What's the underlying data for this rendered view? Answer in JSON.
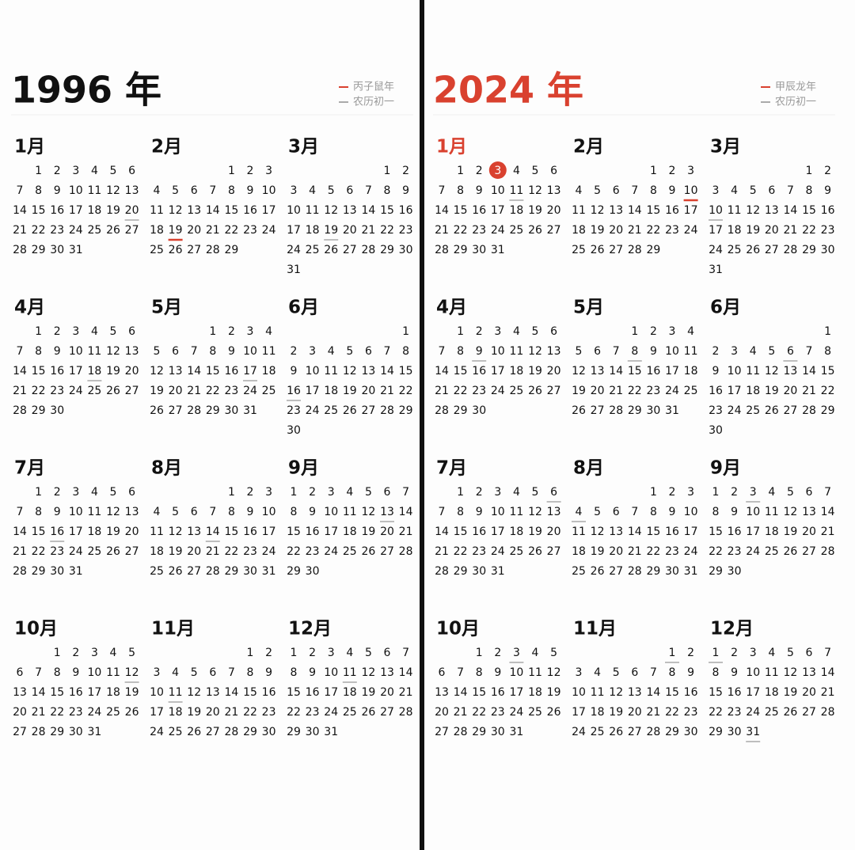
{
  "calendars": [
    {
      "title": "1996 年",
      "title_color": "#111111",
      "legend": [
        {
          "label": "丙子鼠年",
          "color": "#d9412f"
        },
        {
          "label": "农历初一",
          "color": "#aaaaaa"
        }
      ],
      "months": [
        {
          "name": "1月",
          "days": [
            null,
            1,
            2,
            3,
            4,
            5,
            6,
            7,
            8,
            9,
            10,
            11,
            12,
            13,
            14,
            15,
            16,
            17,
            18,
            19,
            20,
            21,
            22,
            23,
            24,
            25,
            26,
            27,
            28,
            29,
            30,
            31
          ],
          "lunar_first_days": [
            20
          ]
        },
        {
          "name": "2月",
          "days": [
            null,
            null,
            null,
            null,
            1,
            2,
            3,
            4,
            5,
            6,
            7,
            8,
            9,
            10,
            11,
            12,
            13,
            14,
            15,
            16,
            17,
            18,
            19,
            20,
            21,
            22,
            23,
            24,
            25,
            26,
            27,
            28,
            29
          ],
          "new_year_day": 19
        },
        {
          "name": "3月",
          "days": [
            null,
            null,
            null,
            null,
            null,
            1,
            2,
            3,
            4,
            5,
            6,
            7,
            8,
            9,
            10,
            11,
            12,
            13,
            14,
            15,
            16,
            17,
            18,
            19,
            20,
            21,
            22,
            23,
            24,
            25,
            26,
            27,
            28,
            29,
            30,
            31
          ],
          "lunar_first_days": [
            19
          ]
        },
        {
          "name": "4月",
          "days": [
            null,
            1,
            2,
            3,
            4,
            5,
            6,
            7,
            8,
            9,
            10,
            11,
            12,
            13,
            14,
            15,
            16,
            17,
            18,
            19,
            20,
            21,
            22,
            23,
            24,
            25,
            26,
            27,
            28,
            29,
            30
          ],
          "lunar_first_days": [
            18
          ]
        },
        {
          "name": "5月",
          "days": [
            null,
            null,
            null,
            1,
            2,
            3,
            4,
            5,
            6,
            7,
            8,
            9,
            10,
            11,
            12,
            13,
            14,
            15,
            16,
            17,
            18,
            19,
            20,
            21,
            22,
            23,
            24,
            25,
            26,
            27,
            28,
            29,
            30,
            31
          ],
          "lunar_first_days": [
            17
          ]
        },
        {
          "name": "6月",
          "days": [
            null,
            null,
            null,
            null,
            null,
            null,
            1,
            2,
            3,
            4,
            5,
            6,
            7,
            8,
            9,
            10,
            11,
            12,
            13,
            14,
            15,
            16,
            17,
            18,
            19,
            20,
            21,
            22,
            23,
            24,
            25,
            26,
            27,
            28,
            29,
            30
          ],
          "lunar_first_days": [
            16
          ]
        },
        {
          "name": "7月",
          "days": [
            null,
            1,
            2,
            3,
            4,
            5,
            6,
            7,
            8,
            9,
            10,
            11,
            12,
            13,
            14,
            15,
            16,
            17,
            18,
            19,
            20,
            21,
            22,
            23,
            24,
            25,
            26,
            27,
            28,
            29,
            30,
            31
          ],
          "lunar_first_days": [
            16
          ]
        },
        {
          "name": "8月",
          "days": [
            null,
            null,
            null,
            null,
            1,
            2,
            3,
            4,
            5,
            6,
            7,
            8,
            9,
            10,
            11,
            12,
            13,
            14,
            15,
            16,
            17,
            18,
            19,
            20,
            21,
            22,
            23,
            24,
            25,
            26,
            27,
            28,
            29,
            30,
            31
          ],
          "lunar_first_days": [
            14
          ]
        },
        {
          "name": "9月",
          "days": [
            1,
            2,
            3,
            4,
            5,
            6,
            7,
            8,
            9,
            10,
            11,
            12,
            13,
            14,
            15,
            16,
            17,
            18,
            19,
            20,
            21,
            22,
            23,
            24,
            25,
            26,
            27,
            28,
            29,
            30
          ],
          "lunar_first_days": [
            13
          ]
        },
        {
          "name": "10月",
          "days": [
            null,
            null,
            1,
            2,
            3,
            4,
            5,
            6,
            7,
            8,
            9,
            10,
            11,
            12,
            13,
            14,
            15,
            16,
            17,
            18,
            19,
            20,
            21,
            22,
            23,
            24,
            25,
            26,
            27,
            28,
            29,
            30,
            31
          ],
          "lunar_first_days": [
            12
          ]
        },
        {
          "name": "11月",
          "days": [
            null,
            null,
            null,
            null,
            null,
            1,
            2,
            3,
            4,
            5,
            6,
            7,
            8,
            9,
            10,
            11,
            12,
            13,
            14,
            15,
            16,
            17,
            18,
            19,
            20,
            21,
            22,
            23,
            24,
            25,
            26,
            27,
            28,
            29,
            30
          ],
          "lunar_first_days": [
            11
          ]
        },
        {
          "name": "12月",
          "days": [
            1,
            2,
            3,
            4,
            5,
            6,
            7,
            8,
            9,
            10,
            11,
            12,
            13,
            14,
            15,
            16,
            17,
            18,
            19,
            20,
            21,
            22,
            23,
            24,
            25,
            26,
            27,
            28,
            29,
            30,
            31
          ],
          "lunar_first_days": [
            11
          ]
        }
      ]
    },
    {
      "title": "2024 年",
      "title_color": "#d9412f",
      "legend": [
        {
          "label": "甲辰龙年",
          "color": "#d9412f"
        },
        {
          "label": "农历初一",
          "color": "#aaaaaa"
        }
      ],
      "months": [
        {
          "name": "1月",
          "color": "#d9412f",
          "today": 3,
          "days": [
            null,
            1,
            2,
            3,
            4,
            5,
            6,
            7,
            8,
            9,
            10,
            11,
            12,
            13,
            14,
            15,
            16,
            17,
            18,
            19,
            20,
            21,
            22,
            23,
            24,
            25,
            26,
            27,
            28,
            29,
            30,
            31
          ],
          "lunar_first_days": [
            11
          ]
        },
        {
          "name": "2月",
          "days": [
            null,
            null,
            null,
            null,
            1,
            2,
            3,
            4,
            5,
            6,
            7,
            8,
            9,
            10,
            11,
            12,
            13,
            14,
            15,
            16,
            17,
            18,
            19,
            20,
            21,
            22,
            23,
            24,
            25,
            26,
            27,
            28,
            29
          ],
          "new_year_day": 10
        },
        {
          "name": "3月",
          "days": [
            null,
            null,
            null,
            null,
            null,
            1,
            2,
            3,
            4,
            5,
            6,
            7,
            8,
            9,
            10,
            11,
            12,
            13,
            14,
            15,
            16,
            17,
            18,
            19,
            20,
            21,
            22,
            23,
            24,
            25,
            26,
            27,
            28,
            29,
            30,
            31
          ],
          "lunar_first_days": [
            10
          ]
        },
        {
          "name": "4月",
          "days": [
            null,
            1,
            2,
            3,
            4,
            5,
            6,
            7,
            8,
            9,
            10,
            11,
            12,
            13,
            14,
            15,
            16,
            17,
            18,
            19,
            20,
            21,
            22,
            23,
            24,
            25,
            26,
            27,
            28,
            29,
            30
          ],
          "lunar_first_days": [
            9
          ]
        },
        {
          "name": "5月",
          "days": [
            null,
            null,
            null,
            1,
            2,
            3,
            4,
            5,
            6,
            7,
            8,
            9,
            10,
            11,
            12,
            13,
            14,
            15,
            16,
            17,
            18,
            19,
            20,
            21,
            22,
            23,
            24,
            25,
            26,
            27,
            28,
            29,
            30,
            31
          ],
          "lunar_first_days": [
            8
          ]
        },
        {
          "name": "6月",
          "days": [
            null,
            null,
            null,
            null,
            null,
            null,
            1,
            2,
            3,
            4,
            5,
            6,
            7,
            8,
            9,
            10,
            11,
            12,
            13,
            14,
            15,
            16,
            17,
            18,
            19,
            20,
            21,
            22,
            23,
            24,
            25,
            26,
            27,
            28,
            29,
            30
          ],
          "lunar_first_days": [
            6
          ]
        },
        {
          "name": "7月",
          "days": [
            null,
            1,
            2,
            3,
            4,
            5,
            6,
            7,
            8,
            9,
            10,
            11,
            12,
            13,
            14,
            15,
            16,
            17,
            18,
            19,
            20,
            21,
            22,
            23,
            24,
            25,
            26,
            27,
            28,
            29,
            30,
            31
          ],
          "lunar_first_days": [
            6
          ]
        },
        {
          "name": "8月",
          "days": [
            null,
            null,
            null,
            null,
            1,
            2,
            3,
            4,
            5,
            6,
            7,
            8,
            9,
            10,
            11,
            12,
            13,
            14,
            15,
            16,
            17,
            18,
            19,
            20,
            21,
            22,
            23,
            24,
            25,
            26,
            27,
            28,
            29,
            30,
            31
          ],
          "lunar_first_days": [
            4
          ]
        },
        {
          "name": "9月",
          "days": [
            1,
            2,
            3,
            4,
            5,
            6,
            7,
            8,
            9,
            10,
            11,
            12,
            13,
            14,
            15,
            16,
            17,
            18,
            19,
            20,
            21,
            22,
            23,
            24,
            25,
            26,
            27,
            28,
            29,
            30
          ],
          "lunar_first_days": [
            3
          ]
        },
        {
          "name": "10月",
          "days": [
            null,
            null,
            1,
            2,
            3,
            4,
            5,
            6,
            7,
            8,
            9,
            10,
            11,
            12,
            13,
            14,
            15,
            16,
            17,
            18,
            19,
            20,
            21,
            22,
            23,
            24,
            25,
            26,
            27,
            28,
            29,
            30,
            31
          ],
          "lunar_first_days": [
            3
          ]
        },
        {
          "name": "11月",
          "days": [
            null,
            null,
            null,
            null,
            null,
            1,
            2,
            3,
            4,
            5,
            6,
            7,
            8,
            9,
            10,
            11,
            12,
            13,
            14,
            15,
            16,
            17,
            18,
            19,
            20,
            21,
            22,
            23,
            24,
            25,
            26,
            27,
            28,
            29,
            30
          ],
          "lunar_first_days": [
            1
          ]
        },
        {
          "name": "12月",
          "days": [
            1,
            2,
            3,
            4,
            5,
            6,
            7,
            8,
            9,
            10,
            11,
            12,
            13,
            14,
            15,
            16,
            17,
            18,
            19,
            20,
            21,
            22,
            23,
            24,
            25,
            26,
            27,
            28,
            29,
            30,
            31
          ],
          "lunar_first_days": [
            1,
            31
          ]
        }
      ]
    }
  ]
}
